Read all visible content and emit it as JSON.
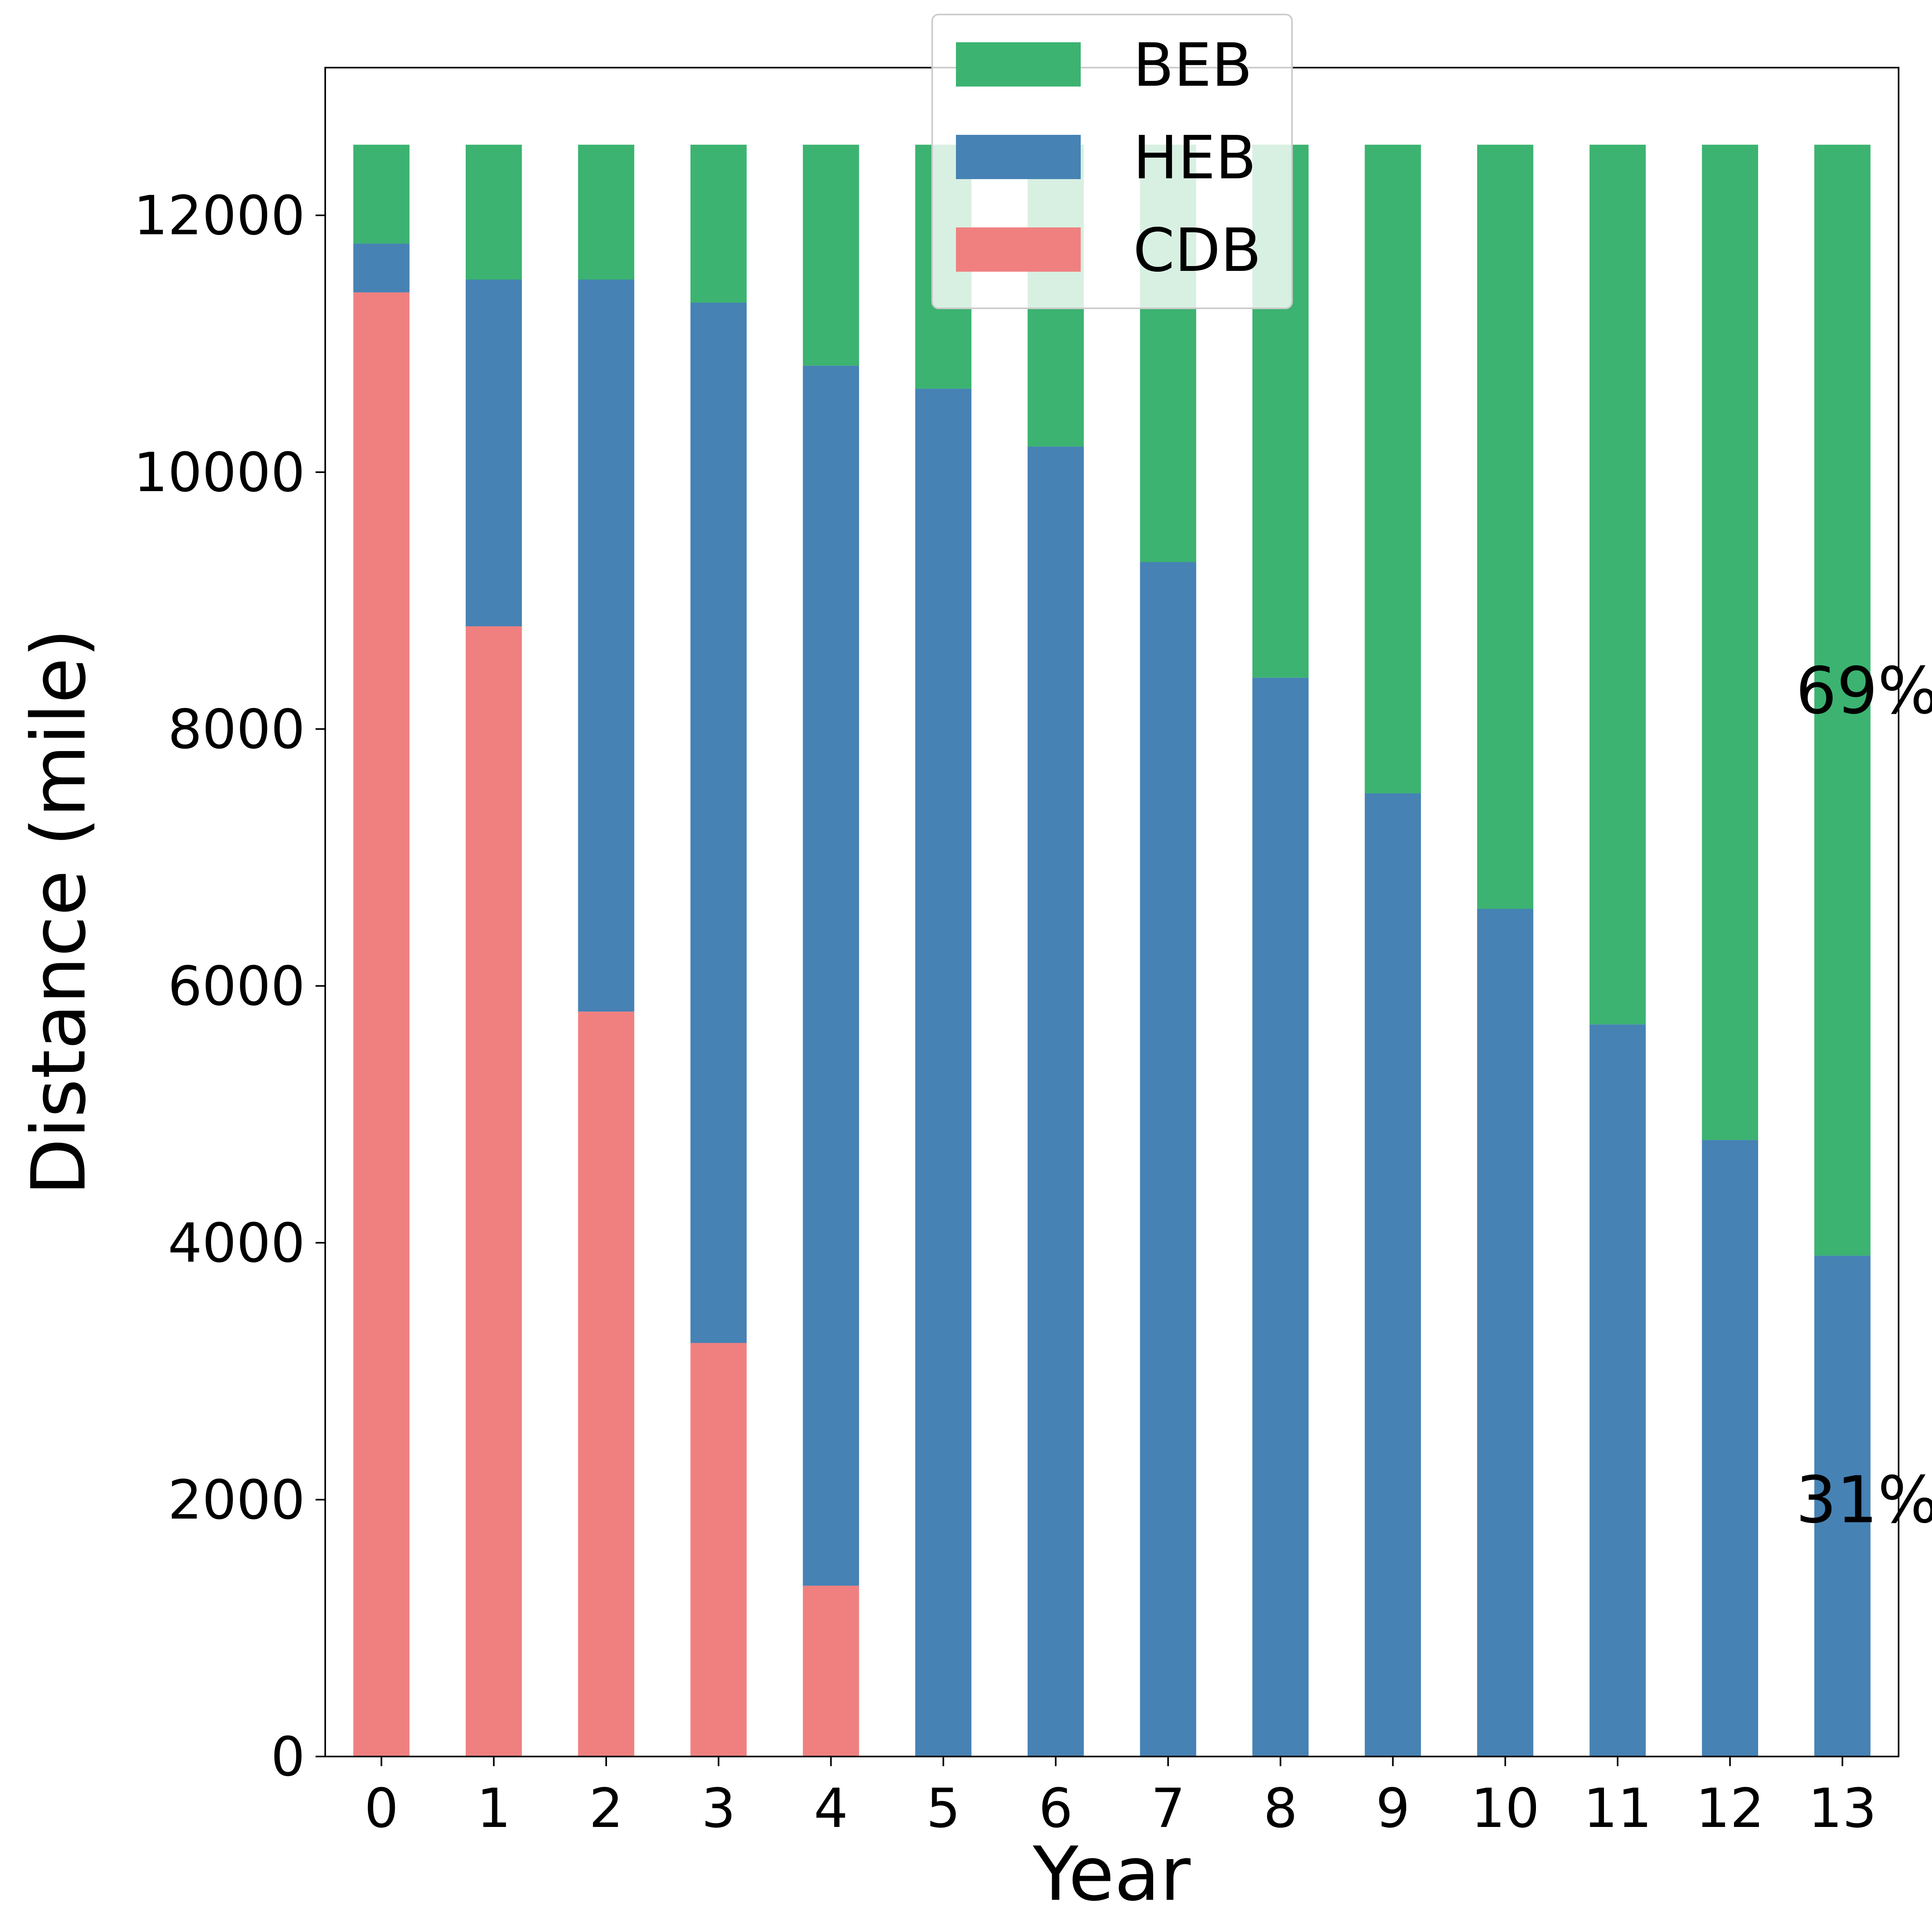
{
  "chart_data": {
    "type": "bar",
    "stacked": true,
    "title": "",
    "xlabel": "Year",
    "ylabel": "Distance (mile)",
    "categories": [
      "0",
      "1",
      "2",
      "3",
      "4",
      "5",
      "6",
      "7",
      "8",
      "9",
      "10",
      "11",
      "12",
      "13"
    ],
    "ylim": [
      0,
      13150
    ],
    "yticks": [
      "0",
      "2000",
      "4000",
      "6000",
      "8000",
      "10000",
      "12000"
    ],
    "series": [
      {
        "name": "CDB",
        "color": "#F08080",
        "values": [
          11400,
          8800,
          5800,
          3220,
          1330,
          0,
          0,
          0,
          0,
          0,
          0,
          0,
          0,
          0
        ]
      },
      {
        "name": "HEB",
        "color": "#4682B4",
        "values": [
          380,
          2700,
          5700,
          8100,
          9500,
          10650,
          10200,
          9300,
          8400,
          7500,
          6600,
          5700,
          4800,
          3900
        ]
      },
      {
        "name": "BEB",
        "color": "#3CB371",
        "values": [
          770,
          1050,
          1050,
          1230,
          1720,
          1900,
          2350,
          3250,
          4150,
          5050,
          5950,
          6850,
          7750,
          8650
        ]
      }
    ],
    "legend": {
      "position": "top-center",
      "order": [
        "BEB",
        "HEB",
        "CDB"
      ]
    },
    "annotations": [
      {
        "text": "69%",
        "x": "13",
        "y": 8300
      },
      {
        "text": "31%",
        "x": "13",
        "y": 2000
      }
    ],
    "grid": false
  }
}
